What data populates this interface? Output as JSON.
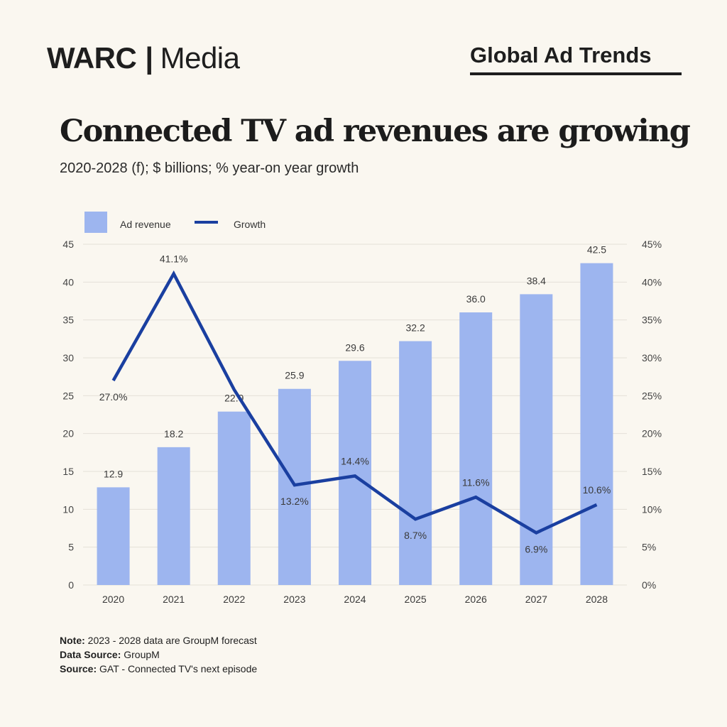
{
  "header": {
    "brand_primary": "WARC",
    "brand_separator": "|",
    "brand_secondary": "Media",
    "series_title": "Global Ad Trends"
  },
  "title": "Connected TV ad revenues are growing",
  "subtitle": "2020-2028 (f); $ billions; % year-on year growth",
  "colors": {
    "bar": "#9db5ef",
    "line": "#1a3fa0",
    "background": "#faf7f0",
    "grid": "#e4e0d8"
  },
  "chart_data": {
    "type": "bar",
    "title": "Connected TV ad revenues are growing",
    "subtitle": "2020-2028 (f); $ billions; % year-on year growth",
    "categories": [
      "2020",
      "2021",
      "2022",
      "2023",
      "2024",
      "2025",
      "2026",
      "2027",
      "2028"
    ],
    "series": [
      {
        "name": "Ad revenue",
        "type": "bar",
        "axis": "left",
        "values": [
          12.9,
          18.2,
          22.9,
          25.9,
          29.6,
          32.2,
          36.0,
          38.4,
          42.5
        ],
        "labels": [
          "12.9",
          "18.2",
          "22.9",
          "25.9",
          "29.6",
          "32.2",
          "36.0",
          "38.4",
          "42.5"
        ]
      },
      {
        "name": "Growth",
        "type": "line",
        "axis": "right",
        "values": [
          27.0,
          41.1,
          25.8,
          13.2,
          14.4,
          8.7,
          11.6,
          6.9,
          10.6
        ],
        "labels": [
          "27.0%",
          "41.1%",
          "",
          "13.2%",
          "14.4%",
          "8.7%",
          "11.6%",
          "6.9%",
          "10.6%"
        ],
        "label_position": [
          "below",
          "above",
          "none",
          "below",
          "above",
          "below",
          "above",
          "below",
          "above"
        ]
      }
    ],
    "y_left": {
      "lim": [
        0,
        45
      ],
      "ticks": [
        "0",
        "5",
        "10",
        "15",
        "20",
        "25",
        "30",
        "35",
        "40",
        "45"
      ]
    },
    "y_right": {
      "lim": [
        0,
        45
      ],
      "ticks": [
        "0%",
        "5%",
        "10%",
        "15%",
        "20%",
        "25%",
        "30%",
        "35%",
        "40%",
        "45%"
      ]
    },
    "xlabel": "",
    "ylabel": "",
    "grid": true,
    "legend": {
      "placement": "top-left",
      "entries": [
        "Ad revenue",
        "Growth"
      ]
    }
  },
  "notes": [
    {
      "label": "Note:",
      "text": " 2023 - 2028 data are GroupM forecast"
    },
    {
      "label": "Data Source:",
      "text": " GroupM"
    },
    {
      "label": "Source:",
      "text": " GAT - Connected TV's next episode"
    }
  ]
}
